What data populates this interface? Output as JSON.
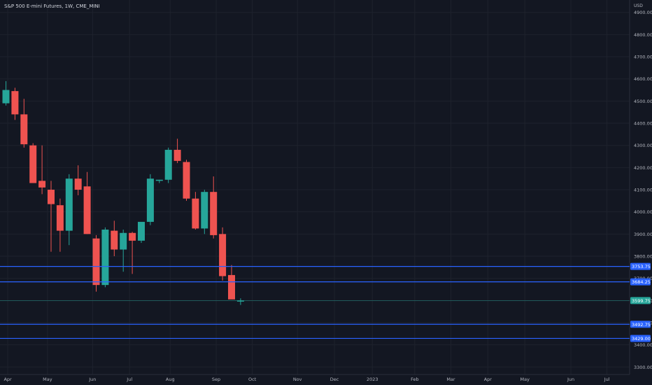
{
  "header": {
    "symbol_title": "S&P 500 E-mini Futures, 1W, CME_MINI",
    "currency": "USD"
  },
  "colors": {
    "background": "#131722",
    "up": "#26a69a",
    "down": "#ef5350",
    "grid": "#1e222d",
    "hline": "#2962ff",
    "axis_text": "#b2b5be",
    "current_price": "#26a69a"
  },
  "chart_data": {
    "type": "candlestick",
    "title": "S&P 500 E-mini Futures, 1W, CME_MINI",
    "ylabel": "USD",
    "ylim": [
      3270,
      4950
    ],
    "grid": true,
    "y_ticks": [
      "4900.00",
      "4800.00",
      "4700.00",
      "4600.00",
      "4500.00",
      "4400.00",
      "4300.00",
      "4200.00",
      "4100.00",
      "4000.00",
      "3900.00",
      "3800.00",
      "3700.00",
      "3600.00",
      "3500.00",
      "3400.00",
      "3300.00"
    ],
    "x_ticks": [
      {
        "label": "Apr",
        "week": 0.2
      },
      {
        "label": "May",
        "week": 4.6
      },
      {
        "label": "Jun",
        "week": 9.6
      },
      {
        "label": "Jul",
        "week": 13.7
      },
      {
        "label": "Aug",
        "week": 18.2
      },
      {
        "label": "Sep",
        "week": 23.3
      },
      {
        "label": "Oct",
        "week": 27.3
      },
      {
        "label": "Nov",
        "week": 32.3
      },
      {
        "label": "Dec",
        "week": 36.4
      },
      {
        "label": "2023",
        "week": 40.6
      },
      {
        "label": "Feb",
        "week": 45.3
      },
      {
        "label": "Mar",
        "week": 49.3
      },
      {
        "label": "Apr",
        "week": 53.4
      },
      {
        "label": "May",
        "week": 57.5
      },
      {
        "label": "Jun",
        "week": 62.6
      },
      {
        "label": "Jul",
        "week": 66.6
      }
    ],
    "candles": [
      {
        "o": 4490,
        "h": 4590,
        "l": 4480,
        "c": 4550
      },
      {
        "o": 4545,
        "h": 4560,
        "l": 4415,
        "c": 4440
      },
      {
        "o": 4440,
        "h": 4510,
        "l": 4290,
        "c": 4305
      },
      {
        "o": 4300,
        "h": 4310,
        "l": 4140,
        "c": 4130
      },
      {
        "o": 4140,
        "h": 4300,
        "l": 4080,
        "c": 4110
      },
      {
        "o": 4100,
        "h": 4140,
        "l": 3820,
        "c": 4035
      },
      {
        "o": 4030,
        "h": 4060,
        "l": 3820,
        "c": 3915
      },
      {
        "o": 3915,
        "h": 4170,
        "l": 3850,
        "c": 4150
      },
      {
        "o": 4150,
        "h": 4210,
        "l": 4075,
        "c": 4100
      },
      {
        "o": 4115,
        "h": 4180,
        "l": 3900,
        "c": 3900
      },
      {
        "o": 3880,
        "h": 3895,
        "l": 3640,
        "c": 3670
      },
      {
        "o": 3670,
        "h": 3930,
        "l": 3660,
        "c": 3920
      },
      {
        "o": 3915,
        "h": 3960,
        "l": 3800,
        "c": 3830
      },
      {
        "o": 3830,
        "h": 3920,
        "l": 3730,
        "c": 3905
      },
      {
        "o": 3905,
        "h": 3910,
        "l": 3720,
        "c": 3870
      },
      {
        "o": 3870,
        "h": 3950,
        "l": 3860,
        "c": 3955
      },
      {
        "o": 3955,
        "h": 4170,
        "l": 3940,
        "c": 4150
      },
      {
        "o": 4140,
        "h": 4145,
        "l": 4130,
        "c": 4145
      },
      {
        "o": 4145,
        "h": 4290,
        "l": 4130,
        "c": 4280
      },
      {
        "o": 4280,
        "h": 4330,
        "l": 4220,
        "c": 4230
      },
      {
        "o": 4225,
        "h": 4235,
        "l": 4050,
        "c": 4060
      },
      {
        "o": 4060,
        "h": 4090,
        "l": 3920,
        "c": 3925
      },
      {
        "o": 3925,
        "h": 4100,
        "l": 3900,
        "c": 4090
      },
      {
        "o": 4090,
        "h": 4160,
        "l": 3880,
        "c": 3895
      },
      {
        "o": 3900,
        "h": 3930,
        "l": 3690,
        "c": 3710
      },
      {
        "o": 3715,
        "h": 3760,
        "l": 3610,
        "c": 3605
      },
      {
        "o": 3599,
        "h": 3610,
        "l": 3580,
        "c": 3600
      }
    ],
    "horizontal_lines": [
      {
        "price": 3753.75,
        "label": "3753.75"
      },
      {
        "price": 3684.25,
        "label": "3684.25"
      },
      {
        "price": 3492.75,
        "label": "3492.75"
      },
      {
        "price": 3429.0,
        "label": "3429.00"
      }
    ],
    "current_price": {
      "price": 3599.75,
      "label": "3599.75"
    }
  }
}
